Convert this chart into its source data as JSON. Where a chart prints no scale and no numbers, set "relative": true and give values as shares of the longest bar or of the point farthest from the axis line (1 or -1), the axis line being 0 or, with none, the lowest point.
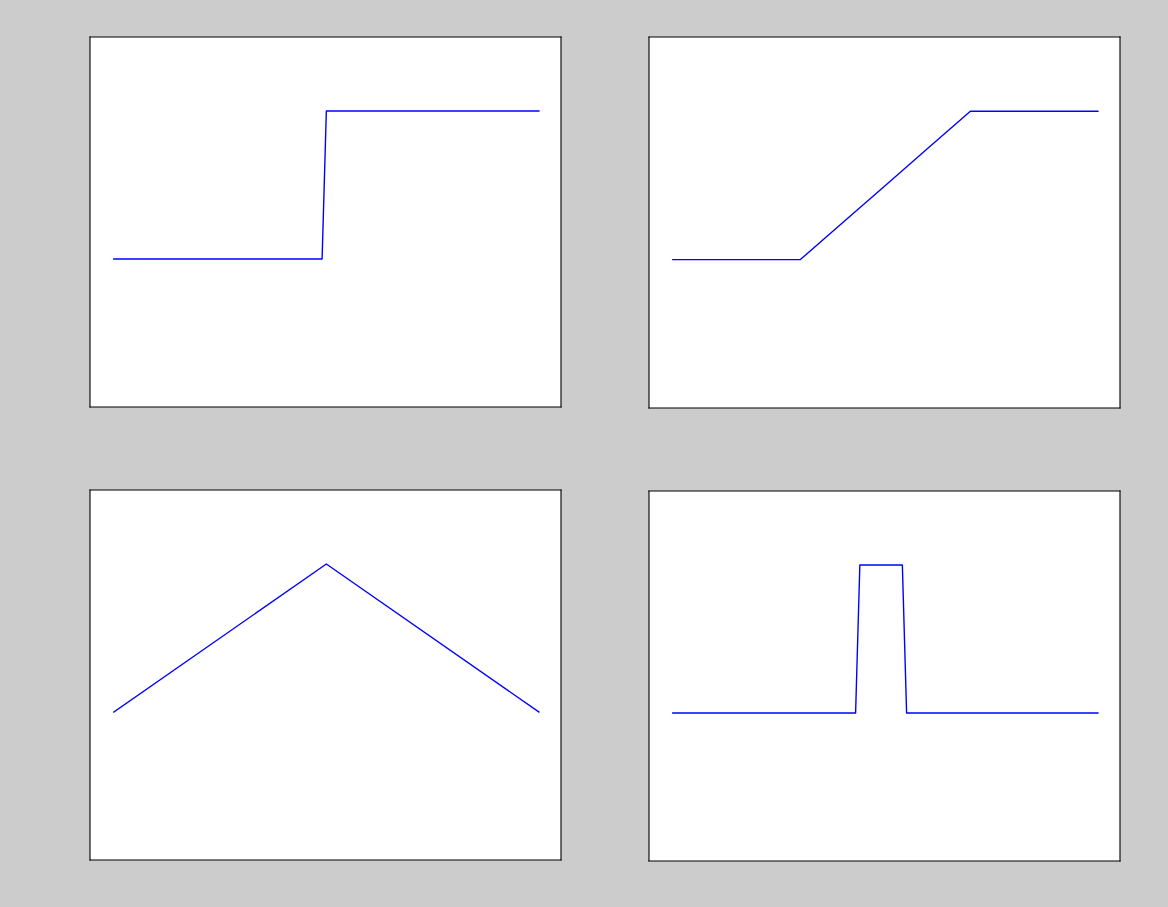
{
  "chart_data": [
    {
      "type": "line",
      "relative": true,
      "color": "#0000ff",
      "categories": [
        null,
        null,
        null,
        null,
        null,
        null,
        null,
        null,
        null,
        null,
        null,
        null,
        null,
        null,
        null,
        null,
        null,
        null,
        null,
        null,
        null,
        null,
        null,
        null,
        null,
        null,
        null,
        null,
        null,
        null,
        null,
        null,
        null,
        null,
        null,
        null,
        null,
        null,
        null,
        null,
        null,
        null,
        null,
        null,
        null,
        null,
        null,
        null,
        null,
        null,
        null,
        null,
        null,
        null,
        null,
        null,
        null,
        null,
        null,
        null,
        null,
        null,
        null,
        null,
        null,
        null,
        null,
        null,
        null,
        null,
        null,
        null,
        null,
        null,
        null,
        null,
        null,
        null,
        null,
        null,
        null,
        null,
        null,
        null,
        null,
        null,
        null,
        null,
        null,
        null,
        null,
        null,
        null,
        null,
        null,
        null,
        null,
        null,
        null,
        null,
        null
      ],
      "values": [
        0.5,
        0.5,
        0.5,
        0.5,
        0.5,
        0.5,
        0.5,
        0.5,
        0.5,
        0.5,
        0.5,
        0.5,
        0.5,
        0.5,
        0.5,
        0.5,
        0.5,
        0.5,
        0.5,
        0.5,
        0.5,
        0.5,
        0.5,
        0.5,
        0.5,
        0.5,
        0.5,
        0.5,
        0.5,
        0.5,
        0.5,
        0.5,
        0.5,
        0.5,
        0.5,
        0.5,
        0.5,
        0.5,
        0.5,
        0.5,
        0.5,
        0.5,
        0.5,
        0.5,
        0.5,
        0.5,
        0.5,
        0.5,
        0.5,
        0.5,
        1,
        1,
        1,
        1,
        1,
        1,
        1,
        1,
        1,
        1,
        1,
        1,
        1,
        1,
        1,
        1,
        1,
        1,
        1,
        1,
        1,
        1,
        1,
        1,
        1,
        1,
        1,
        1,
        1,
        1,
        1,
        1,
        1,
        1,
        1,
        1,
        1,
        1,
        1,
        1,
        1,
        1,
        1,
        1,
        1,
        1,
        1,
        1,
        1,
        1,
        1
      ]
    },
    {
      "type": "line",
      "relative": true,
      "color": "#0000ff",
      "categories": [
        null,
        null,
        null,
        null,
        null,
        null,
        null,
        null,
        null,
        null,
        null
      ],
      "values": [
        0.5,
        0.5,
        0.5,
        0.5,
        0.625,
        0.75,
        0.875,
        1,
        1,
        1,
        1
      ]
    },
    {
      "type": "line",
      "relative": true,
      "color": "#0000ff",
      "categories": [
        null,
        null,
        null
      ],
      "values": [
        0.5,
        1,
        0.5
      ]
    },
    {
      "type": "line",
      "relative": true,
      "color": "#0000ff",
      "categories": [
        null,
        null,
        null,
        null,
        null,
        null,
        null,
        null,
        null,
        null,
        null,
        null,
        null,
        null,
        null,
        null,
        null,
        null,
        null,
        null,
        null,
        null,
        null,
        null,
        null,
        null,
        null,
        null,
        null,
        null,
        null,
        null,
        null,
        null,
        null,
        null,
        null,
        null,
        null,
        null,
        null,
        null,
        null,
        null,
        null,
        null,
        null,
        null,
        null,
        null,
        null,
        null,
        null,
        null,
        null,
        null,
        null,
        null,
        null,
        null,
        null,
        null,
        null,
        null,
        null,
        null,
        null,
        null,
        null,
        null,
        null,
        null,
        null,
        null,
        null,
        null,
        null,
        null,
        null,
        null,
        null,
        null,
        null,
        null,
        null,
        null,
        null,
        null,
        null,
        null,
        null,
        null,
        null,
        null,
        null,
        null,
        null,
        null,
        null,
        null,
        null
      ],
      "values": [
        0.5,
        0.5,
        0.5,
        0.5,
        0.5,
        0.5,
        0.5,
        0.5,
        0.5,
        0.5,
        0.5,
        0.5,
        0.5,
        0.5,
        0.5,
        0.5,
        0.5,
        0.5,
        0.5,
        0.5,
        0.5,
        0.5,
        0.5,
        0.5,
        0.5,
        0.5,
        0.5,
        0.5,
        0.5,
        0.5,
        0.5,
        0.5,
        0.5,
        0.5,
        0.5,
        0.5,
        0.5,
        0.5,
        0.5,
        0.5,
        0.5,
        0.5,
        0.5,
        0.5,
        1,
        1,
        1,
        1,
        1,
        1,
        1,
        1,
        1,
        1,
        1,
        0.5,
        0.5,
        0.5,
        0.5,
        0.5,
        0.5,
        0.5,
        0.5,
        0.5,
        0.5,
        0.5,
        0.5,
        0.5,
        0.5,
        0.5,
        0.5,
        0.5,
        0.5,
        0.5,
        0.5,
        0.5,
        0.5,
        0.5,
        0.5,
        0.5,
        0.5,
        0.5,
        0.5,
        0.5,
        0.5,
        0.5,
        0.5,
        0.5,
        0.5,
        0.5,
        0.5,
        0.5,
        0.5,
        0.5,
        0.5,
        0.5,
        0.5,
        0.5,
        0.5,
        0.5,
        0.5
      ]
    }
  ]
}
